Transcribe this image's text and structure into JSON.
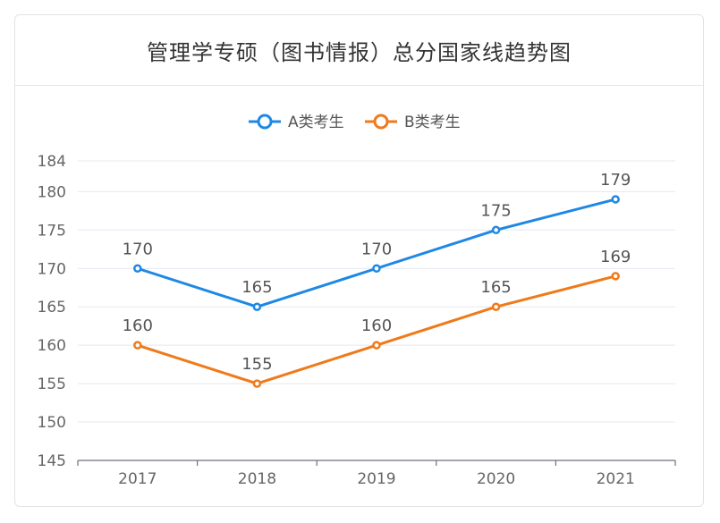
{
  "chart_data": {
    "type": "line",
    "title": "管理学专硕（图书情报）总分国家线趋势图",
    "categories": [
      "2017",
      "2018",
      "2019",
      "2020",
      "2021"
    ],
    "series": [
      {
        "name": "A类考生",
        "values": [
          170,
          165,
          170,
          175,
          179
        ],
        "color": "#1e88e5"
      },
      {
        "name": "B类考生",
        "values": [
          160,
          155,
          160,
          165,
          169
        ],
        "color": "#ef7a1a"
      }
    ],
    "y_ticks": [
      "145",
      "150",
      "155",
      "160",
      "165",
      "170",
      "175",
      "180",
      "184"
    ],
    "ylim": [
      145,
      184
    ],
    "legend_position": "top-center",
    "grid": true,
    "xlabel": "",
    "ylabel": ""
  }
}
